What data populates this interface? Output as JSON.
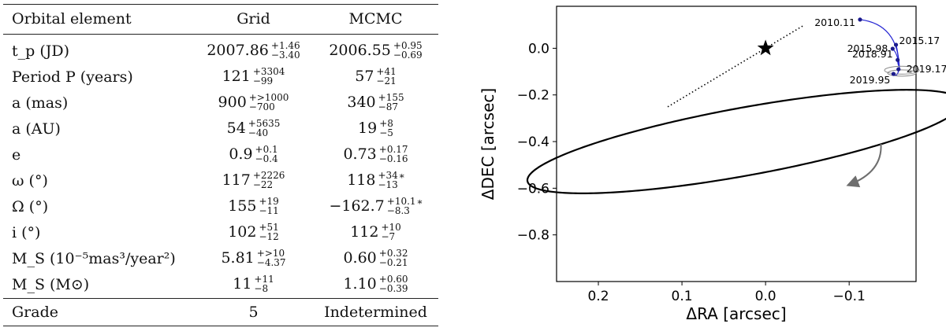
{
  "table": {
    "headers": [
      "Orbital element",
      "Grid",
      "MCMC"
    ],
    "rows": [
      {
        "label": "t_p (JD)",
        "grid": {
          "value": "2007.86",
          "plus": "+1.46",
          "minus": "−3.40"
        },
        "mcmc": {
          "value": "2006.55",
          "plus": "+0.95",
          "minus": "−0.69"
        }
      },
      {
        "label": "Period P (years)",
        "grid": {
          "value": "121",
          "plus": "+3304",
          "minus": "−99"
        },
        "mcmc": {
          "value": "57",
          "plus": "+41",
          "minus": "−21"
        }
      },
      {
        "label": "a (mas)",
        "grid": {
          "value": "900",
          "plus": "+>1000",
          "minus": "−700"
        },
        "mcmc": {
          "value": "340",
          "plus": "+155",
          "minus": "−87"
        }
      },
      {
        "label": "a (AU)",
        "grid": {
          "value": "54",
          "plus": "+5635",
          "minus": "−40"
        },
        "mcmc": {
          "value": "19",
          "plus": "+8",
          "minus": "−5"
        }
      },
      {
        "label": "e",
        "grid": {
          "value": "0.9",
          "plus": "+0.1",
          "minus": "−0.4"
        },
        "mcmc": {
          "value": "0.73",
          "plus": "+0.17",
          "minus": "−0.16"
        }
      },
      {
        "label": "ω (°)",
        "grid": {
          "value": "117",
          "plus": "+2226",
          "minus": "−22"
        },
        "mcmc": {
          "value": "118",
          "plus": "+34",
          "minus": "−13",
          "note": "*"
        }
      },
      {
        "label": "Ω (°)",
        "grid": {
          "value": "155",
          "plus": "+19",
          "minus": "−11"
        },
        "mcmc": {
          "value": "−162.7",
          "plus": "+10.1",
          "minus": "−8.3",
          "note": "*"
        }
      },
      {
        "label": "i (°)",
        "grid": {
          "value": "102",
          "plus": "+51",
          "minus": "−12"
        },
        "mcmc": {
          "value": "112",
          "plus": "+10",
          "minus": "−7"
        }
      },
      {
        "label": "M_S (10⁻⁵mas³/year²)",
        "grid": {
          "value": "5.81",
          "plus": "+>10",
          "minus": "−4.37"
        },
        "mcmc": {
          "value": "0.60",
          "plus": "+0.32",
          "minus": "−0.21"
        }
      },
      {
        "label": "M_S (M⊙)",
        "grid": {
          "value": "11",
          "plus": "+11",
          "minus": "−8"
        },
        "mcmc": {
          "value": "1.10",
          "plus": "+0.60",
          "minus": "−0.39"
        }
      }
    ],
    "grade": {
      "label": "Grade",
      "grid": "5",
      "mcmc": "Indetermined"
    }
  },
  "chart_data": {
    "type": "scatter",
    "title": "",
    "xlabel": "ΔRA [arcsec]",
    "ylabel": "ΔDEC [arcsec]",
    "xlim": [
      0.25,
      -0.18
    ],
    "ylim": [
      -1.0,
      0.18
    ],
    "xticks": [
      0.2,
      0.1,
      0.0,
      -0.1
    ],
    "xtick_labels": [
      "0.2",
      "0.1",
      "0.0",
      "−0.1"
    ],
    "yticks": [
      0.0,
      -0.2,
      -0.4,
      -0.6,
      -0.8
    ],
    "ytick_labels": [
      "0.0",
      "−0.2",
      "−0.4",
      "−0.6",
      "−0.8"
    ],
    "orbit_ellipse": {
      "center": [
        0.025,
        -0.4
      ],
      "semi_major": 0.32,
      "semi_minor": 0.12,
      "angle_deg": 141.0
    },
    "line_of_nodes": {
      "x": [
        0.117,
        -0.046
      ],
      "y": [
        -0.251,
        0.099
      ]
    },
    "central_star": {
      "x": 0.0,
      "y": 0.0,
      "marker": "star"
    },
    "observations": [
      {
        "epoch": "2010.11",
        "x": -0.113,
        "y": 0.123
      },
      {
        "epoch": "2015.17",
        "x": -0.156,
        "y": 0.015
      },
      {
        "epoch": "2015.98",
        "x": -0.152,
        "y": -0.002
      },
      {
        "epoch": "2018.91",
        "x": -0.158,
        "y": -0.05
      },
      {
        "epoch": "2019.17",
        "x": -0.159,
        "y": -0.09
      },
      {
        "epoch": "2019.95",
        "x": -0.153,
        "y": -0.11
      }
    ],
    "direction": "clockwise",
    "colors": {
      "orbit": "#000000",
      "observations": "#1a1a8c",
      "fit_arcs": "#2b2bd4",
      "arrow": "#6e6e6e"
    }
  }
}
